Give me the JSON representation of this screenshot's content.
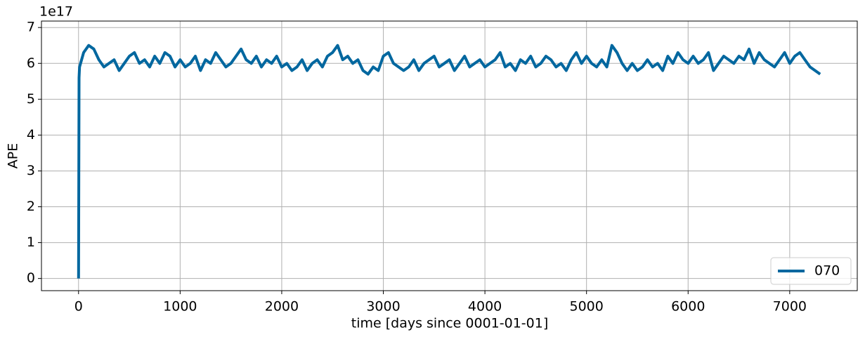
{
  "chart_data": {
    "type": "line",
    "xlabel": "time [days since 0001-01-01]",
    "ylabel": "APE",
    "y_offset_label": "1e17",
    "x": [
      0,
      5,
      10,
      50,
      100,
      150,
      200,
      250,
      300,
      350,
      400,
      450,
      500,
      550,
      600,
      650,
      700,
      750,
      800,
      850,
      900,
      950,
      1000,
      1050,
      1100,
      1150,
      1200,
      1250,
      1300,
      1350,
      1400,
      1450,
      1500,
      1550,
      1600,
      1650,
      1700,
      1750,
      1800,
      1850,
      1900,
      1950,
      2000,
      2050,
      2100,
      2150,
      2200,
      2250,
      2300,
      2350,
      2400,
      2450,
      2500,
      2550,
      2600,
      2650,
      2700,
      2750,
      2800,
      2850,
      2900,
      2950,
      3000,
      3050,
      3100,
      3150,
      3200,
      3250,
      3300,
      3350,
      3400,
      3450,
      3500,
      3550,
      3600,
      3650,
      3700,
      3750,
      3800,
      3850,
      3900,
      3950,
      4000,
      4050,
      4100,
      4150,
      4200,
      4250,
      4300,
      4350,
      4400,
      4450,
      4500,
      4550,
      4600,
      4650,
      4700,
      4750,
      4800,
      4850,
      4900,
      4950,
      5000,
      5050,
      5100,
      5150,
      5200,
      5250,
      5300,
      5350,
      5400,
      5450,
      5500,
      5550,
      5600,
      5650,
      5700,
      5750,
      5800,
      5850,
      5900,
      5950,
      6000,
      6050,
      6100,
      6150,
      6200,
      6250,
      6300,
      6350,
      6400,
      6450,
      6500,
      6550,
      6600,
      6650,
      6700,
      6750,
      6800,
      6850,
      6900,
      6950,
      7000,
      7050,
      7100,
      7150,
      7200,
      7250,
      7300
    ],
    "series": [
      {
        "name": "070",
        "color": "#00679f",
        "values": [
          0,
          5.6,
          5.9,
          6.3,
          6.5,
          6.4,
          6.1,
          5.9,
          6.0,
          6.1,
          5.8,
          6.0,
          6.2,
          6.3,
          6.0,
          6.1,
          5.9,
          6.2,
          6.0,
          6.3,
          6.2,
          5.9,
          6.1,
          5.9,
          6.0,
          6.2,
          5.8,
          6.1,
          6.0,
          6.3,
          6.1,
          5.9,
          6.0,
          6.2,
          6.4,
          6.1,
          6.0,
          6.2,
          5.9,
          6.1,
          6.0,
          6.2,
          5.9,
          6.0,
          5.8,
          5.9,
          6.1,
          5.8,
          6.0,
          6.1,
          5.9,
          6.2,
          6.3,
          6.5,
          6.1,
          6.2,
          6.0,
          6.1,
          5.8,
          5.7,
          5.9,
          5.8,
          6.2,
          6.3,
          6.0,
          5.9,
          5.8,
          5.9,
          6.1,
          5.8,
          6.0,
          6.1,
          6.2,
          5.9,
          6.0,
          6.1,
          5.8,
          6.0,
          6.2,
          5.9,
          6.0,
          6.1,
          5.9,
          6.0,
          6.1,
          6.3,
          5.9,
          6.0,
          5.8,
          6.1,
          6.0,
          6.2,
          5.9,
          6.0,
          6.2,
          6.1,
          5.9,
          6.0,
          5.8,
          6.1,
          6.3,
          6.0,
          6.2,
          6.0,
          5.9,
          6.1,
          5.9,
          6.5,
          6.3,
          6.0,
          5.8,
          6.0,
          5.8,
          5.9,
          6.1,
          5.9,
          6.0,
          5.8,
          6.2,
          6.0,
          6.3,
          6.1,
          6.0,
          6.2,
          6.0,
          6.1,
          6.3,
          5.8,
          6.0,
          6.2,
          6.1,
          6.0,
          6.2,
          6.1,
          6.4,
          6.0,
          6.3,
          6.1,
          6.0,
          5.9,
          6.1,
          6.3,
          6.0,
          6.2,
          6.3,
          6.1,
          5.9,
          5.8,
          5.7
        ]
      }
    ],
    "xlim": [
      -365,
      7665
    ],
    "xticks": [
      0,
      1000,
      2000,
      3000,
      4000,
      5000,
      6000,
      7000
    ],
    "ylim": [
      -0.34,
      7.18
    ],
    "yticks": [
      0,
      1,
      2,
      3,
      4,
      5,
      6,
      7
    ],
    "grid": true,
    "legend": "lower right"
  }
}
